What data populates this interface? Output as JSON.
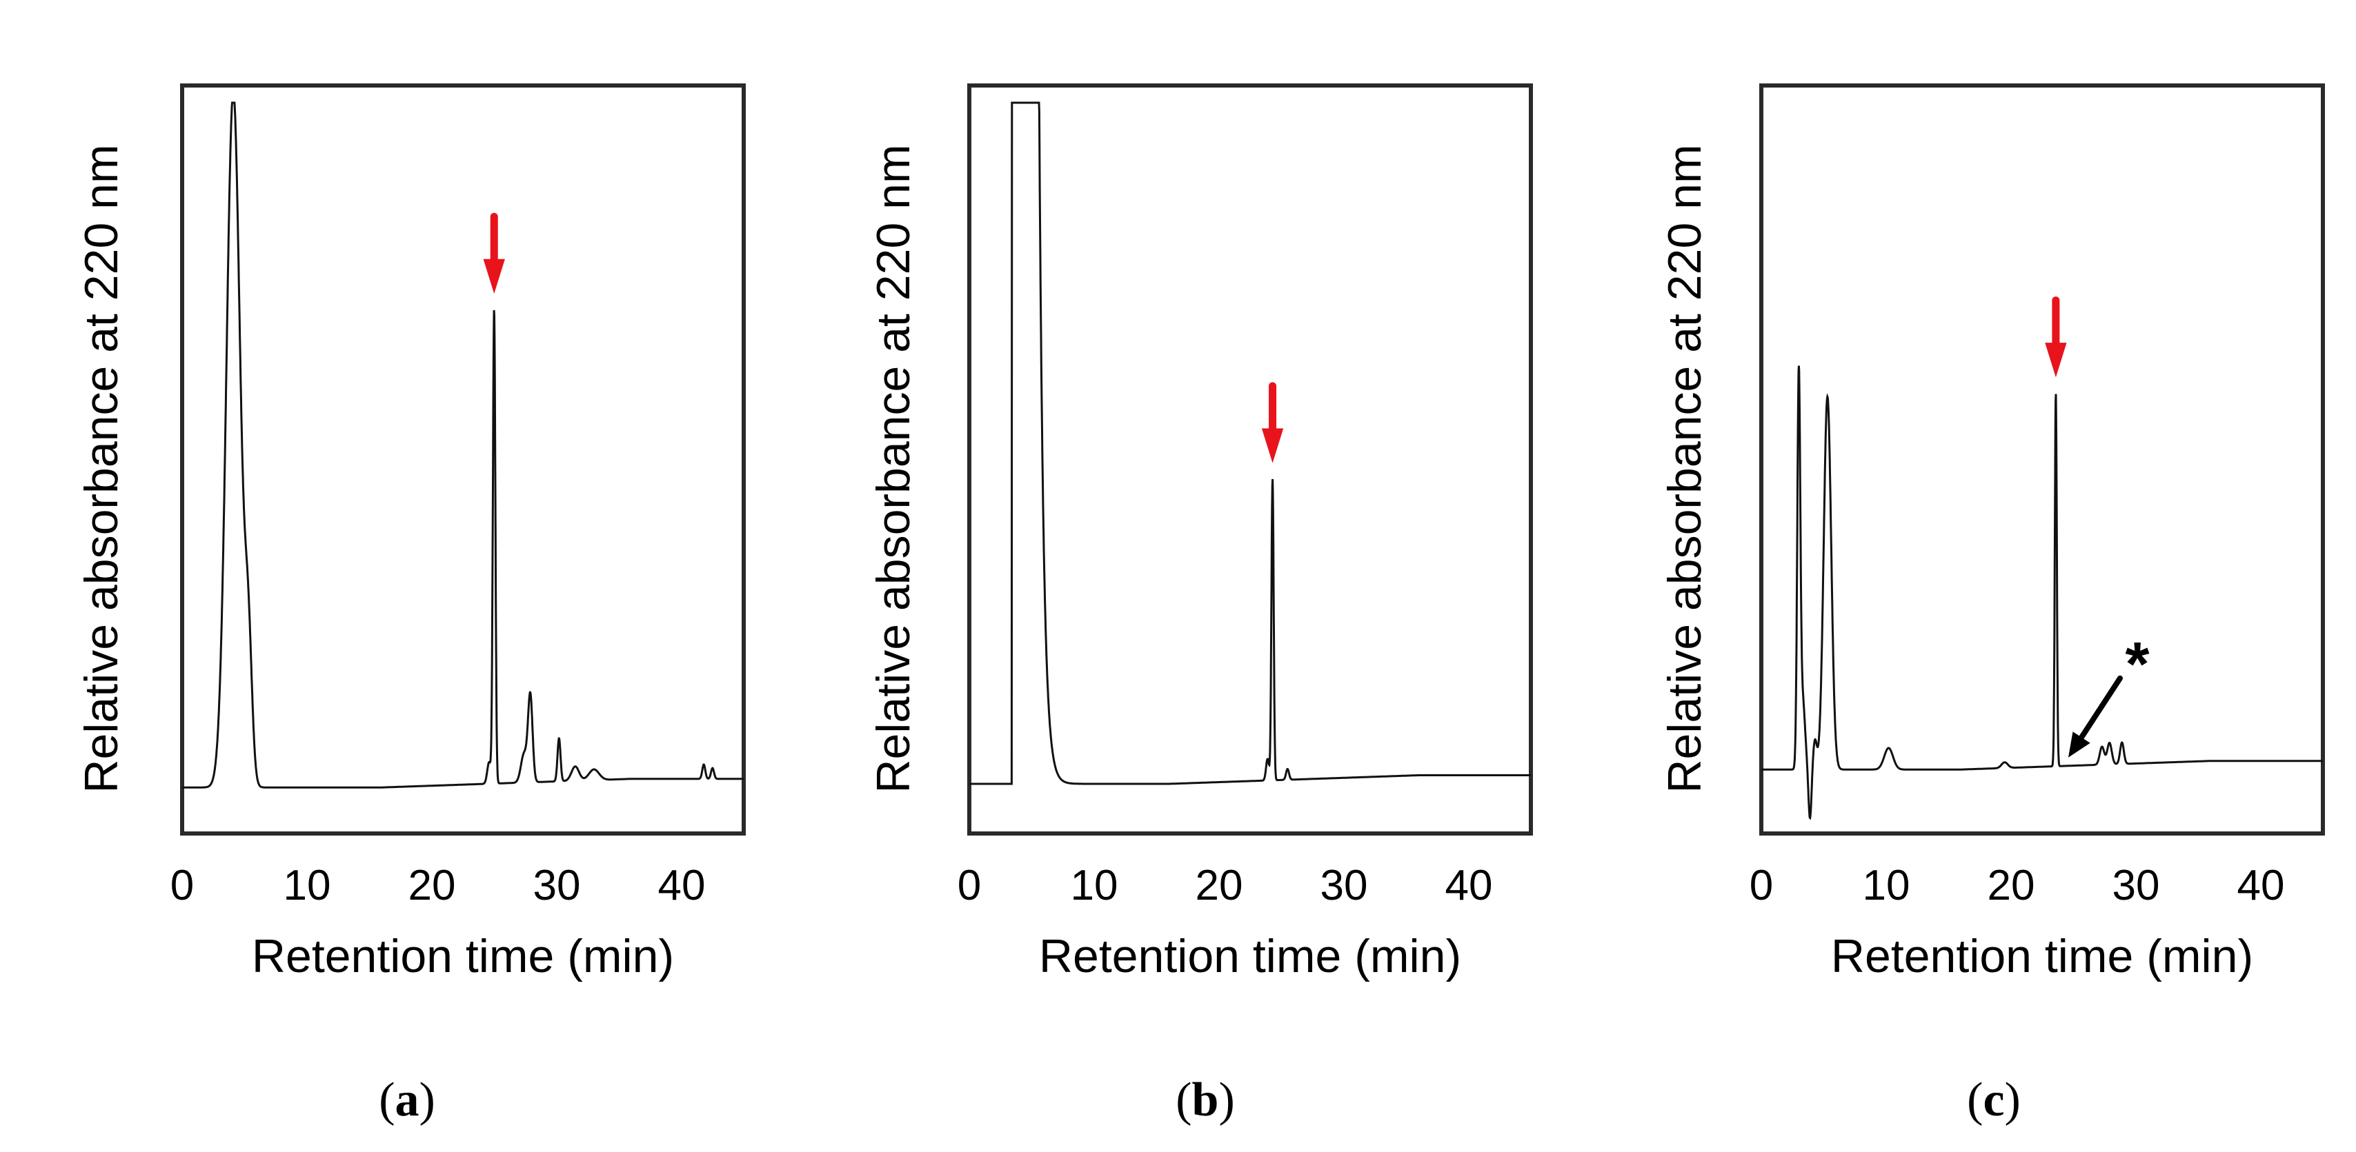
{
  "chart_data": [
    {
      "type": "line",
      "panel_label": "a",
      "xlabel": "Retention time (min)",
      "ylabel": "Relative absorbance  at 220 nm",
      "xlim": [
        0,
        45
      ],
      "ylim": [
        0,
        100
      ],
      "x_ticks": [
        0,
        10,
        20,
        30,
        40
      ],
      "x_tick_labels": [
        "0",
        "10",
        "20",
        "30",
        "40"
      ],
      "y_ticks_shown": false,
      "baseline": 4.5,
      "peaks": [
        {
          "rt": 4.1,
          "height": 97,
          "width": 0.55
        },
        {
          "rt": 5.3,
          "height": 19,
          "width": 0.3
        },
        {
          "rt": 24.6,
          "height": 3,
          "width": 0.15
        },
        {
          "rt": 25.0,
          "height": 66,
          "width": 0.1
        },
        {
          "rt": 27.4,
          "height": 4,
          "width": 0.25
        },
        {
          "rt": 27.9,
          "height": 12,
          "width": 0.18
        },
        {
          "rt": 30.2,
          "height": 6,
          "width": 0.12
        },
        {
          "rt": 31.5,
          "height": 2,
          "width": 0.3
        },
        {
          "rt": 33.0,
          "height": 1.5,
          "width": 0.4
        },
        {
          "rt": 41.8,
          "height": 2,
          "width": 0.12
        },
        {
          "rt": 42.5,
          "height": 1.5,
          "width": 0.12
        }
      ],
      "annotations": [
        {
          "type": "arrow",
          "color": "#e8131b",
          "points_to_rt": 25.0,
          "label": ""
        }
      ]
    },
    {
      "type": "line",
      "panel_label": "b",
      "xlabel": "Retention time (min)",
      "ylabel": "Relative absorbance  at 220 nm",
      "xlim": [
        0,
        45
      ],
      "ylim": [
        0,
        100
      ],
      "x_ticks": [
        0,
        10,
        20,
        30,
        40
      ],
      "x_tick_labels": [
        "0",
        "10",
        "20",
        "30",
        "40"
      ],
      "y_ticks_shown": false,
      "baseline": 5,
      "saturated_peak": {
        "rt_start": 3.5,
        "rt_end": 5.6,
        "level": 100
      },
      "peaks": [
        {
          "rt": 23.9,
          "height": 3,
          "width": 0.12
        },
        {
          "rt": 24.3,
          "height": 42,
          "width": 0.09
        },
        {
          "rt": 25.5,
          "height": 1.5,
          "width": 0.12
        }
      ],
      "annotations": [
        {
          "type": "arrow",
          "color": "#e8131b",
          "points_to_rt": 24.3,
          "label": ""
        }
      ]
    },
    {
      "type": "line",
      "panel_label": "c",
      "xlabel": "Retention time (min)",
      "ylabel": "Relative absorbance  at 220 nm",
      "xlim": [
        0,
        45
      ],
      "ylim": [
        0,
        100
      ],
      "x_ticks": [
        0,
        10,
        20,
        30,
        40
      ],
      "x_tick_labels": [
        "0",
        "10",
        "20",
        "30",
        "40"
      ],
      "y_ticks_shown": false,
      "baseline": 7,
      "peaks": [
        {
          "rt": 3.0,
          "height": 53,
          "width": 0.12
        },
        {
          "rt": 3.3,
          "height": 10,
          "width": 0.2
        },
        {
          "rt": 3.9,
          "height": -7,
          "width": 0.12
        },
        {
          "rt": 4.3,
          "height": 4,
          "width": 0.15
        },
        {
          "rt": 5.3,
          "height": 52,
          "width": 0.3
        },
        {
          "rt": 10.2,
          "height": 3,
          "width": 0.35
        },
        {
          "rt": 19.5,
          "height": 0.8,
          "width": 0.25
        },
        {
          "rt": 23.6,
          "height": 52,
          "width": 0.08
        },
        {
          "rt": 27.3,
          "height": 2.5,
          "width": 0.18
        },
        {
          "rt": 27.9,
          "height": 3,
          "width": 0.18
        },
        {
          "rt": 28.9,
          "height": 3,
          "width": 0.15
        }
      ],
      "annotations": [
        {
          "type": "arrow",
          "color": "#e8131b",
          "points_to_rt": 23.6,
          "label": ""
        },
        {
          "type": "arrow",
          "color": "#000000",
          "points_to_rt": 24.6,
          "label": "*"
        }
      ]
    }
  ]
}
